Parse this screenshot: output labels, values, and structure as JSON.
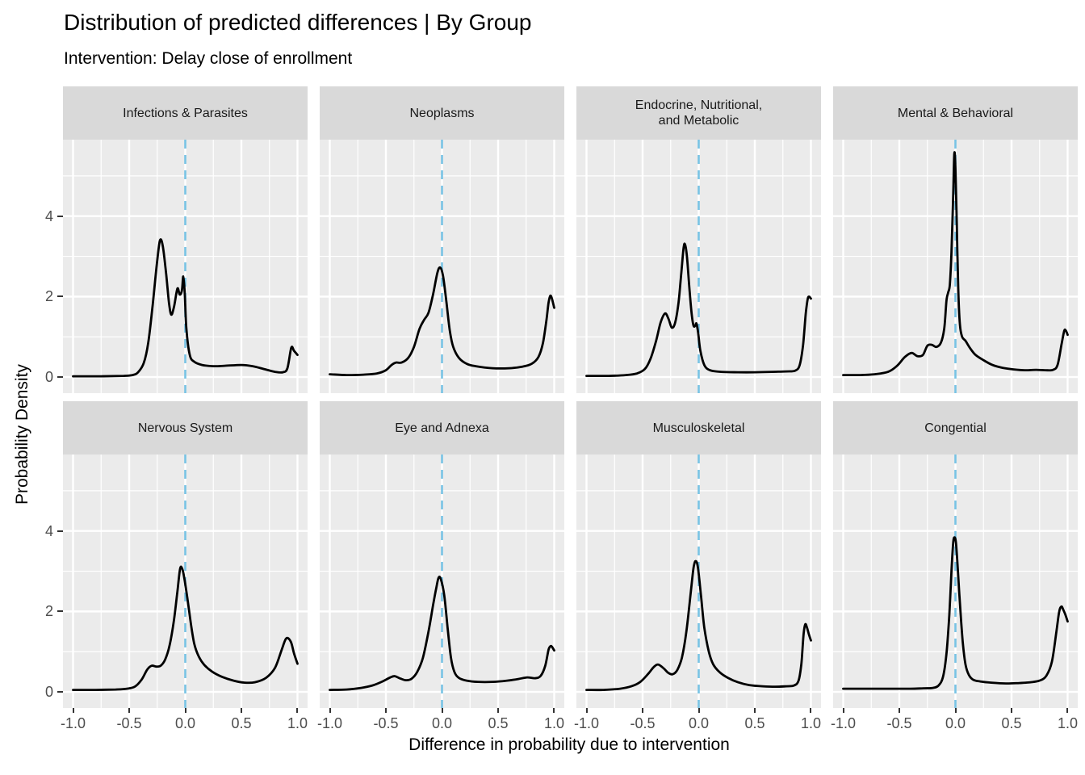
{
  "title": "Distribution of predicted differences | By Group",
  "subtitle": "Intervention: Delay close of enrollment",
  "axes": {
    "x_title": "Difference in probability due to intervention",
    "y_title": "Probability Density",
    "x_ticks": {
      "labels": [
        "-1.0",
        "-0.5",
        "0.0",
        "0.5",
        "1.0"
      ],
      "values": [
        -1,
        -0.5,
        0,
        0.5,
        1
      ]
    },
    "y_ticks": {
      "labels": [
        "0",
        "2",
        "4"
      ],
      "values": [
        0,
        2,
        4
      ]
    }
  },
  "colors": {
    "panel_bg": "#EBEBEB",
    "strip_bg": "#D9D9D9",
    "grid": "#FFFFFF",
    "curve": "#000000",
    "vline": "#78C3E4",
    "tick_text": "#4D4D4D",
    "tick_mark": "#333333"
  },
  "chart_data": {
    "type": "line",
    "subtype": "faceted-density",
    "facet_layout": {
      "rows": 2,
      "cols": 4
    },
    "xlim": [
      -1,
      1
    ],
    "ylim_display": [
      -0.4,
      5.9
    ],
    "x_major_gridlines": [
      -1,
      -0.5,
      0,
      0.5,
      1
    ],
    "x_minor_gridlines": [
      -0.75,
      -0.25,
      0.25,
      0.75
    ],
    "y_major_gridlines": [
      0,
      2,
      4
    ],
    "y_minor_gridlines": [
      1,
      3,
      5
    ],
    "vline_x": 0,
    "facets": [
      {
        "label": "Infections & Parasites",
        "points": [
          [
            -1,
            0.02
          ],
          [
            -0.75,
            0.02
          ],
          [
            -0.55,
            0.03
          ],
          [
            -0.47,
            0.05
          ],
          [
            -0.42,
            0.12
          ],
          [
            -0.37,
            0.35
          ],
          [
            -0.33,
            0.85
          ],
          [
            -0.29,
            1.8
          ],
          [
            -0.25,
            2.9
          ],
          [
            -0.225,
            3.4
          ],
          [
            -0.2,
            3.25
          ],
          [
            -0.17,
            2.55
          ],
          [
            -0.145,
            1.85
          ],
          [
            -0.125,
            1.55
          ],
          [
            -0.1,
            1.75
          ],
          [
            -0.07,
            2.2
          ],
          [
            -0.05,
            2.05
          ],
          [
            -0.03,
            2.15
          ],
          [
            -0.018,
            2.5
          ],
          [
            -0.005,
            2.1
          ],
          [
            0.01,
            1.2
          ],
          [
            0.04,
            0.55
          ],
          [
            0.08,
            0.38
          ],
          [
            0.15,
            0.3
          ],
          [
            0.25,
            0.27
          ],
          [
            0.35,
            0.28
          ],
          [
            0.5,
            0.3
          ],
          [
            0.6,
            0.27
          ],
          [
            0.7,
            0.2
          ],
          [
            0.8,
            0.13
          ],
          [
            0.87,
            0.12
          ],
          [
            0.91,
            0.22
          ],
          [
            0.945,
            0.73
          ],
          [
            0.97,
            0.65
          ],
          [
            1,
            0.55
          ]
        ]
      },
      {
        "label": "Neoplasms",
        "points": [
          [
            -1,
            0.07
          ],
          [
            -0.85,
            0.05
          ],
          [
            -0.7,
            0.06
          ],
          [
            -0.58,
            0.09
          ],
          [
            -0.5,
            0.17
          ],
          [
            -0.45,
            0.3
          ],
          [
            -0.41,
            0.36
          ],
          [
            -0.36,
            0.36
          ],
          [
            -0.3,
            0.48
          ],
          [
            -0.25,
            0.75
          ],
          [
            -0.2,
            1.2
          ],
          [
            -0.16,
            1.42
          ],
          [
            -0.12,
            1.6
          ],
          [
            -0.08,
            2.05
          ],
          [
            -0.04,
            2.6
          ],
          [
            -0.015,
            2.72
          ],
          [
            0.01,
            2.5
          ],
          [
            0.04,
            1.85
          ],
          [
            0.07,
            1.15
          ],
          [
            0.1,
            0.75
          ],
          [
            0.15,
            0.48
          ],
          [
            0.22,
            0.33
          ],
          [
            0.3,
            0.27
          ],
          [
            0.45,
            0.22
          ],
          [
            0.6,
            0.22
          ],
          [
            0.72,
            0.26
          ],
          [
            0.8,
            0.33
          ],
          [
            0.86,
            0.5
          ],
          [
            0.9,
            0.85
          ],
          [
            0.93,
            1.4
          ],
          [
            0.95,
            1.85
          ],
          [
            0.965,
            2.02
          ],
          [
            0.98,
            1.95
          ],
          [
            1,
            1.72
          ]
        ]
      },
      {
        "label": "Endocrine, Nutritional,\nand Metabolic",
        "points": [
          [
            -1,
            0.03
          ],
          [
            -0.8,
            0.03
          ],
          [
            -0.65,
            0.05
          ],
          [
            -0.55,
            0.09
          ],
          [
            -0.48,
            0.2
          ],
          [
            -0.43,
            0.45
          ],
          [
            -0.38,
            0.9
          ],
          [
            -0.34,
            1.35
          ],
          [
            -0.3,
            1.58
          ],
          [
            -0.27,
            1.45
          ],
          [
            -0.24,
            1.23
          ],
          [
            -0.21,
            1.35
          ],
          [
            -0.18,
            1.85
          ],
          [
            -0.155,
            2.6
          ],
          [
            -0.135,
            3.2
          ],
          [
            -0.122,
            3.3
          ],
          [
            -0.105,
            3.0
          ],
          [
            -0.08,
            2.1
          ],
          [
            -0.06,
            1.5
          ],
          [
            -0.045,
            1.27
          ],
          [
            -0.03,
            1.28
          ],
          [
            -0.02,
            1.33
          ],
          [
            -0.005,
            1.1
          ],
          [
            0.015,
            0.65
          ],
          [
            0.05,
            0.3
          ],
          [
            0.1,
            0.17
          ],
          [
            0.2,
            0.13
          ],
          [
            0.35,
            0.12
          ],
          [
            0.5,
            0.12
          ],
          [
            0.65,
            0.13
          ],
          [
            0.78,
            0.14
          ],
          [
            0.86,
            0.16
          ],
          [
            0.9,
            0.3
          ],
          [
            0.93,
            0.8
          ],
          [
            0.955,
            1.6
          ],
          [
            0.975,
            1.98
          ],
          [
            1,
            1.95
          ]
        ]
      },
      {
        "label": "Mental & Behavioral",
        "points": [
          [
            -1,
            0.05
          ],
          [
            -0.85,
            0.05
          ],
          [
            -0.72,
            0.07
          ],
          [
            -0.6,
            0.13
          ],
          [
            -0.52,
            0.28
          ],
          [
            -0.45,
            0.5
          ],
          [
            -0.39,
            0.6
          ],
          [
            -0.34,
            0.52
          ],
          [
            -0.29,
            0.55
          ],
          [
            -0.25,
            0.78
          ],
          [
            -0.21,
            0.8
          ],
          [
            -0.17,
            0.75
          ],
          [
            -0.13,
            0.85
          ],
          [
            -0.1,
            1.2
          ],
          [
            -0.08,
            1.9
          ],
          [
            -0.065,
            2.1
          ],
          [
            -0.05,
            2.3
          ],
          [
            -0.035,
            3.1
          ],
          [
            -0.02,
            4.5
          ],
          [
            -0.01,
            5.55
          ],
          [
            0,
            5.2
          ],
          [
            0.012,
            3.8
          ],
          [
            0.025,
            2.2
          ],
          [
            0.04,
            1.3
          ],
          [
            0.06,
            1.0
          ],
          [
            0.09,
            0.9
          ],
          [
            0.13,
            0.72
          ],
          [
            0.18,
            0.55
          ],
          [
            0.25,
            0.42
          ],
          [
            0.33,
            0.3
          ],
          [
            0.42,
            0.23
          ],
          [
            0.52,
            0.19
          ],
          [
            0.62,
            0.17
          ],
          [
            0.72,
            0.18
          ],
          [
            0.8,
            0.17
          ],
          [
            0.87,
            0.18
          ],
          [
            0.91,
            0.3
          ],
          [
            0.945,
            0.8
          ],
          [
            0.97,
            1.15
          ],
          [
            0.985,
            1.15
          ],
          [
            1,
            1.05
          ]
        ]
      },
      {
        "label": "Nervous System",
        "points": [
          [
            -1,
            0.05
          ],
          [
            -0.8,
            0.05
          ],
          [
            -0.62,
            0.06
          ],
          [
            -0.52,
            0.08
          ],
          [
            -0.45,
            0.13
          ],
          [
            -0.39,
            0.3
          ],
          [
            -0.34,
            0.55
          ],
          [
            -0.3,
            0.65
          ],
          [
            -0.26,
            0.63
          ],
          [
            -0.22,
            0.65
          ],
          [
            -0.18,
            0.8
          ],
          [
            -0.14,
            1.15
          ],
          [
            -0.1,
            1.8
          ],
          [
            -0.07,
            2.5
          ],
          [
            -0.047,
            3.05
          ],
          [
            -0.03,
            3.08
          ],
          [
            -0.01,
            2.85
          ],
          [
            0.02,
            2.3
          ],
          [
            0.05,
            1.7
          ],
          [
            0.08,
            1.2
          ],
          [
            0.12,
            0.88
          ],
          [
            0.17,
            0.67
          ],
          [
            0.24,
            0.5
          ],
          [
            0.33,
            0.37
          ],
          [
            0.43,
            0.28
          ],
          [
            0.53,
            0.23
          ],
          [
            0.62,
            0.24
          ],
          [
            0.72,
            0.35
          ],
          [
            0.8,
            0.6
          ],
          [
            0.86,
            1.05
          ],
          [
            0.9,
            1.33
          ],
          [
            0.94,
            1.25
          ],
          [
            0.97,
            0.95
          ],
          [
            1,
            0.7
          ]
        ]
      },
      {
        "label": "Eye and Adnexa",
        "points": [
          [
            -1,
            0.05
          ],
          [
            -0.85,
            0.06
          ],
          [
            -0.72,
            0.1
          ],
          [
            -0.62,
            0.16
          ],
          [
            -0.53,
            0.26
          ],
          [
            -0.46,
            0.36
          ],
          [
            -0.42,
            0.39
          ],
          [
            -0.37,
            0.33
          ],
          [
            -0.32,
            0.29
          ],
          [
            -0.27,
            0.33
          ],
          [
            -0.22,
            0.5
          ],
          [
            -0.17,
            0.85
          ],
          [
            -0.12,
            1.5
          ],
          [
            -0.08,
            2.15
          ],
          [
            -0.05,
            2.6
          ],
          [
            -0.03,
            2.84
          ],
          [
            -0.01,
            2.8
          ],
          [
            0.02,
            2.4
          ],
          [
            0.05,
            1.6
          ],
          [
            0.08,
            0.85
          ],
          [
            0.11,
            0.5
          ],
          [
            0.15,
            0.35
          ],
          [
            0.22,
            0.28
          ],
          [
            0.32,
            0.25
          ],
          [
            0.45,
            0.25
          ],
          [
            0.58,
            0.28
          ],
          [
            0.68,
            0.32
          ],
          [
            0.76,
            0.36
          ],
          [
            0.83,
            0.34
          ],
          [
            0.88,
            0.4
          ],
          [
            0.92,
            0.65
          ],
          [
            0.95,
            1.05
          ],
          [
            0.97,
            1.14
          ],
          [
            0.985,
            1.1
          ],
          [
            1,
            1.03
          ]
        ]
      },
      {
        "label": "Musculoskeletal",
        "points": [
          [
            -1,
            0.05
          ],
          [
            -0.85,
            0.05
          ],
          [
            -0.7,
            0.08
          ],
          [
            -0.6,
            0.14
          ],
          [
            -0.52,
            0.25
          ],
          [
            -0.45,
            0.45
          ],
          [
            -0.4,
            0.62
          ],
          [
            -0.36,
            0.68
          ],
          [
            -0.31,
            0.58
          ],
          [
            -0.27,
            0.47
          ],
          [
            -0.23,
            0.44
          ],
          [
            -0.19,
            0.55
          ],
          [
            -0.15,
            0.85
          ],
          [
            -0.11,
            1.5
          ],
          [
            -0.07,
            2.5
          ],
          [
            -0.045,
            3.1
          ],
          [
            -0.025,
            3.25
          ],
          [
            -0.005,
            3.05
          ],
          [
            0.02,
            2.4
          ],
          [
            0.05,
            1.6
          ],
          [
            0.09,
            1.0
          ],
          [
            0.13,
            0.68
          ],
          [
            0.19,
            0.48
          ],
          [
            0.26,
            0.35
          ],
          [
            0.35,
            0.24
          ],
          [
            0.45,
            0.17
          ],
          [
            0.57,
            0.14
          ],
          [
            0.68,
            0.13
          ],
          [
            0.78,
            0.14
          ],
          [
            0.85,
            0.16
          ],
          [
            0.89,
            0.28
          ],
          [
            0.915,
            0.7
          ],
          [
            0.935,
            1.45
          ],
          [
            0.95,
            1.68
          ],
          [
            0.965,
            1.6
          ],
          [
            0.98,
            1.45
          ],
          [
            1,
            1.28
          ]
        ]
      },
      {
        "label": "Congential",
        "points": [
          [
            -1,
            0.08
          ],
          [
            -0.8,
            0.08
          ],
          [
            -0.6,
            0.08
          ],
          [
            -0.4,
            0.08
          ],
          [
            -0.28,
            0.09
          ],
          [
            -0.2,
            0.1
          ],
          [
            -0.15,
            0.16
          ],
          [
            -0.11,
            0.38
          ],
          [
            -0.08,
            0.95
          ],
          [
            -0.055,
            1.9
          ],
          [
            -0.035,
            3.0
          ],
          [
            -0.02,
            3.7
          ],
          [
            -0.008,
            3.84
          ],
          [
            0.005,
            3.7
          ],
          [
            0.02,
            3.1
          ],
          [
            0.04,
            2.2
          ],
          [
            0.065,
            1.25
          ],
          [
            0.09,
            0.68
          ],
          [
            0.12,
            0.42
          ],
          [
            0.16,
            0.3
          ],
          [
            0.22,
            0.26
          ],
          [
            0.32,
            0.23
          ],
          [
            0.45,
            0.21
          ],
          [
            0.57,
            0.22
          ],
          [
            0.67,
            0.24
          ],
          [
            0.75,
            0.28
          ],
          [
            0.81,
            0.4
          ],
          [
            0.86,
            0.75
          ],
          [
            0.9,
            1.5
          ],
          [
            0.925,
            2.0
          ],
          [
            0.945,
            2.12
          ],
          [
            0.96,
            2.05
          ],
          [
            0.98,
            1.92
          ],
          [
            1,
            1.75
          ]
        ]
      }
    ]
  }
}
